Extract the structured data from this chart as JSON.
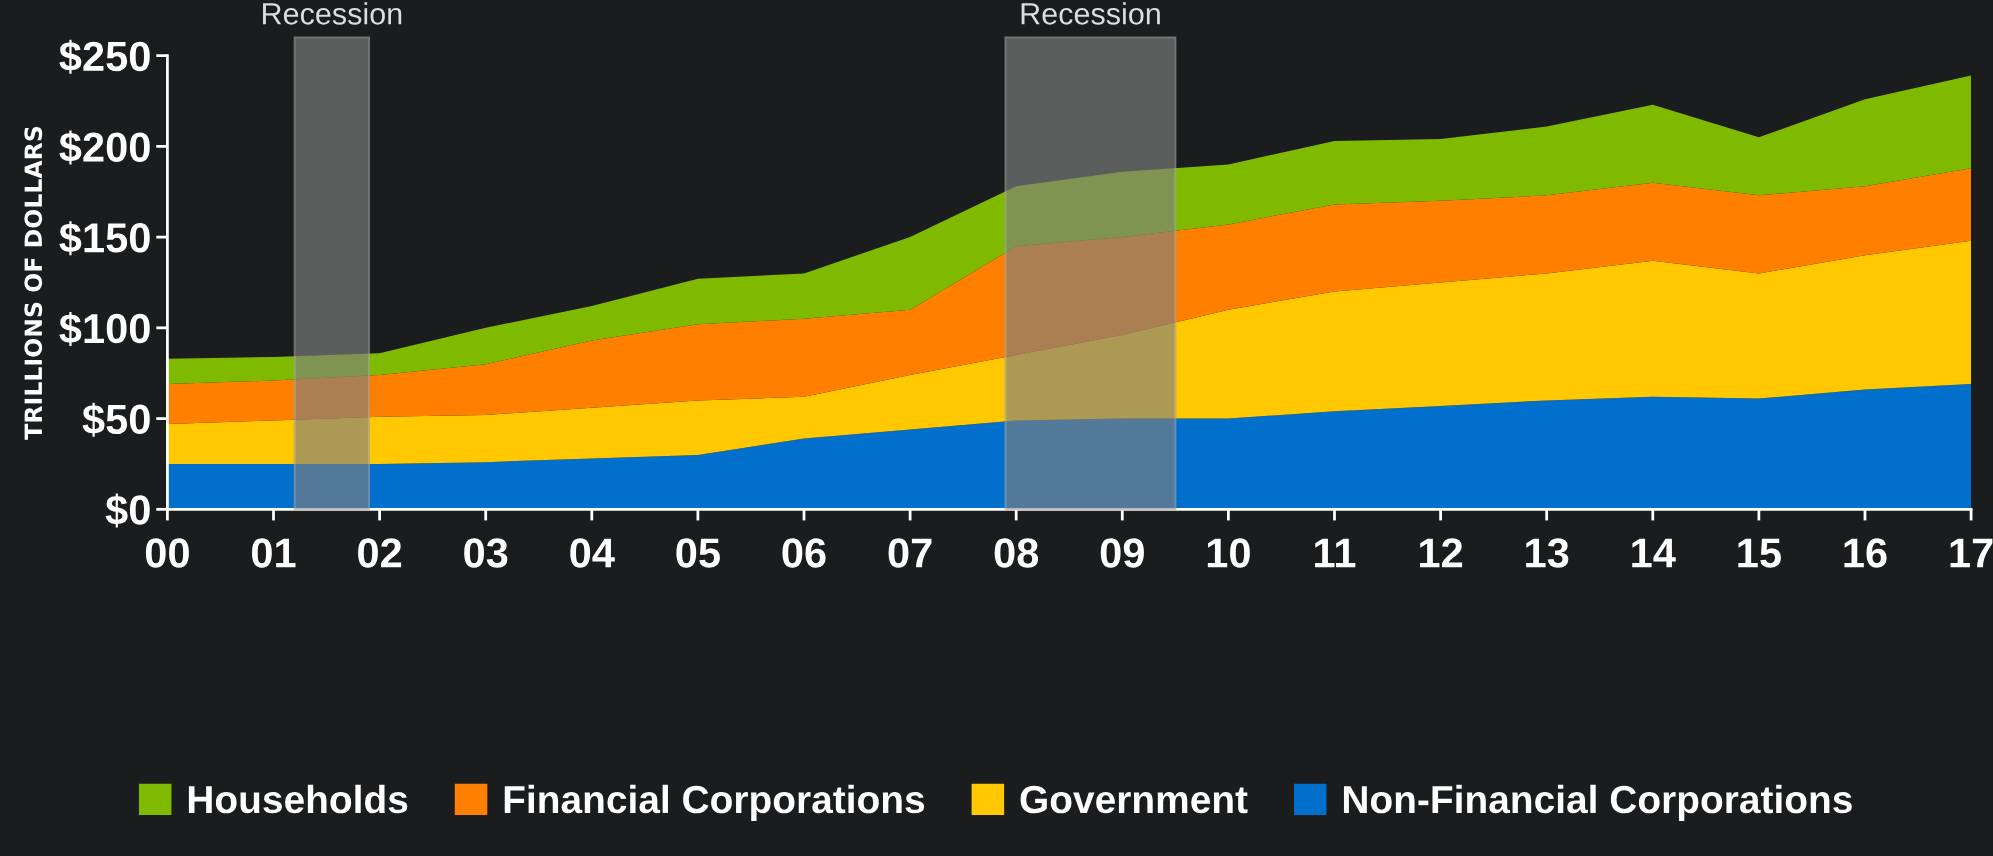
{
  "chart_data": {
    "type": "area",
    "stacked": true,
    "ylabel": "TRILLIONS OF DOLLARS",
    "x": [
      0,
      1,
      2,
      3,
      4,
      5,
      6,
      7,
      8,
      9,
      10,
      11,
      12,
      13,
      14,
      15,
      16,
      17
    ],
    "xlim": [
      0,
      17
    ],
    "xticks": [
      {
        "value": 0,
        "label": "00"
      },
      {
        "value": 1,
        "label": "01"
      },
      {
        "value": 2,
        "label": "02"
      },
      {
        "value": 3,
        "label": "03"
      },
      {
        "value": 4,
        "label": "04"
      },
      {
        "value": 5,
        "label": "05"
      },
      {
        "value": 6,
        "label": "06"
      },
      {
        "value": 7,
        "label": "07"
      },
      {
        "value": 8,
        "label": "08"
      },
      {
        "value": 9,
        "label": "09"
      },
      {
        "value": 10,
        "label": "10"
      },
      {
        "value": 11,
        "label": "11"
      },
      {
        "value": 12,
        "label": "12"
      },
      {
        "value": 13,
        "label": "13"
      },
      {
        "value": 14,
        "label": "14"
      },
      {
        "value": 15,
        "label": "15"
      },
      {
        "value": 16,
        "label": "16"
      },
      {
        "value": 17,
        "label": "17"
      }
    ],
    "ylim": [
      0,
      250
    ],
    "yticks": [
      {
        "value": 0,
        "label": "$0"
      },
      {
        "value": 50,
        "label": "$50"
      },
      {
        "value": 100,
        "label": "$100"
      },
      {
        "value": 150,
        "label": "$150"
      },
      {
        "value": 200,
        "label": "$200"
      },
      {
        "value": 250,
        "label": "$250"
      }
    ],
    "series": [
      {
        "name": "Non-Financial Corporations",
        "color": "#0070cc",
        "values": [
          25,
          25,
          25,
          26,
          28,
          30,
          39,
          44,
          49,
          50,
          50,
          54,
          57,
          60,
          62,
          61,
          66,
          69
        ]
      },
      {
        "name": "Government",
        "color": "#ffc800",
        "values": [
          22,
          24,
          26,
          26,
          28,
          30,
          23,
          30,
          36,
          46,
          60,
          66,
          68,
          70,
          75,
          69,
          74,
          79
        ]
      },
      {
        "name": "Financial Corporations",
        "color": "#ff7f00",
        "values": [
          22,
          22,
          23,
          28,
          37,
          42,
          43,
          36,
          60,
          54,
          47,
          48,
          45,
          43,
          43,
          43,
          38,
          40
        ]
      },
      {
        "name": "Households",
        "color": "#7fba00",
        "values": [
          14,
          13,
          12,
          20,
          19,
          25,
          25,
          40,
          33,
          36,
          33,
          35,
          34,
          38,
          43,
          32,
          48,
          51
        ]
      }
    ],
    "bands": [
      {
        "axis": "x",
        "from": 1.2,
        "to": 1.9,
        "label": "Recession",
        "color": "#808080"
      },
      {
        "axis": "x",
        "from": 7.9,
        "to": 9.5,
        "label": "Recession",
        "color": "#808080"
      }
    ],
    "grid": false,
    "legend": "bottom"
  }
}
